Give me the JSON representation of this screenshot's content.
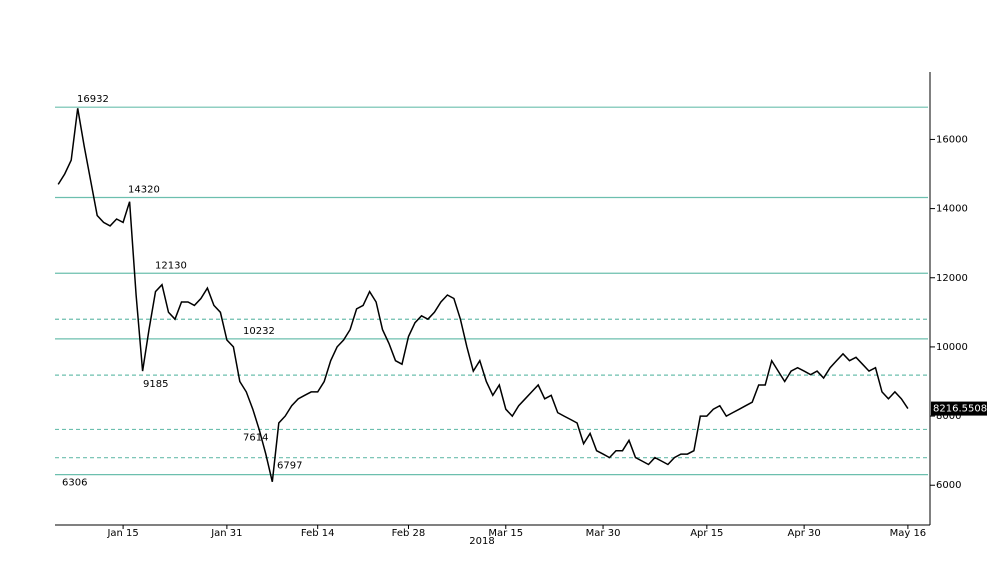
{
  "chart_data": {
    "type": "line",
    "color": "#000000",
    "level_color": "#6cbfae",
    "last_label_bg": "#000000",
    "x": [
      5,
      6,
      7,
      8,
      9,
      10,
      11,
      12,
      13,
      14,
      15,
      16,
      17,
      18,
      19,
      20,
      21,
      22,
      23,
      24,
      25,
      26,
      27,
      28,
      29,
      30,
      31,
      32,
      33,
      34,
      35,
      36,
      37,
      38,
      39,
      40,
      41,
      42,
      43,
      44,
      45,
      46,
      47,
      48,
      49,
      50,
      51,
      52,
      53,
      54,
      55,
      56,
      57,
      58,
      59,
      60,
      61,
      62,
      63,
      64,
      65,
      66,
      67,
      68,
      69,
      70,
      71,
      72,
      73,
      74,
      75,
      76,
      77,
      78,
      79,
      80,
      81,
      82,
      83,
      84,
      85,
      86,
      87,
      88,
      89,
      90,
      91,
      92,
      93,
      94,
      95,
      96,
      97,
      98,
      99,
      100,
      101,
      102,
      103,
      104,
      105,
      106,
      107,
      108,
      109,
      110,
      111,
      112,
      113,
      114,
      115,
      116,
      117,
      118,
      119,
      120,
      121,
      122,
      123,
      124,
      125,
      126,
      127,
      128,
      129,
      130,
      131,
      132,
      133,
      134,
      135,
      136
    ],
    "values": [
      14700,
      15000,
      15400,
      16900,
      15800,
      14800,
      13800,
      13600,
      13500,
      13700,
      13600,
      14200,
      11500,
      9300,
      10500,
      11600,
      11800,
      11000,
      10800,
      11300,
      11300,
      11200,
      11400,
      11700,
      11200,
      11000,
      10200,
      10000,
      9000,
      8700,
      8200,
      7600,
      6900,
      6100,
      7800,
      8000,
      8300,
      8500,
      8600,
      8700,
      8700,
      9000,
      9600,
      10000,
      10200,
      10500,
      11100,
      11200,
      11600,
      11300,
      10500,
      10100,
      9600,
      9500,
      10300,
      10700,
      10900,
      10800,
      11000,
      11300,
      11500,
      11400,
      10800,
      10000,
      9300,
      9600,
      9000,
      8600,
      8900,
      8200,
      8000,
      8300,
      8500,
      8700,
      8900,
      8500,
      8600,
      8100,
      8000,
      7900,
      7800,
      7200,
      7500,
      7000,
      6900,
      6800,
      7000,
      7000,
      7300,
      6800,
      6700,
      6600,
      6800,
      6700,
      6600,
      6800,
      6900,
      6900,
      7000,
      8000,
      8000,
      8200,
      8300,
      8000,
      8100,
      8200,
      8300,
      8400,
      8900,
      8900,
      9600,
      9300,
      9000,
      9300,
      9400,
      9300,
      9200,
      9300,
      9100,
      9400,
      9600,
      9800,
      9600,
      9700,
      9500,
      9300,
      9400,
      8700,
      8500,
      8700,
      8500,
      8216.5508
    ],
    "levels": [
      {
        "value": 16932,
        "dashed": false,
        "labeled": true
      },
      {
        "value": 14320,
        "dashed": false,
        "labeled": true
      },
      {
        "value": 12130,
        "dashed": false,
        "labeled": true
      },
      {
        "value": 10800,
        "dashed": true,
        "labeled": false
      },
      {
        "value": 10232,
        "dashed": false,
        "labeled": true
      },
      {
        "value": 9185,
        "dashed": true,
        "labeled": true
      },
      {
        "value": 7614,
        "dashed": true,
        "labeled": true
      },
      {
        "value": 6797,
        "dashed": true,
        "labeled": true
      },
      {
        "value": 6306,
        "dashed": false,
        "labeled": true
      }
    ],
    "xlabel": "2018",
    "xlim": [
      4.5,
      139.1
    ],
    "xticks": [
      {
        "value": 15,
        "label": "Jan 15"
      },
      {
        "value": 31,
        "label": "Jan 31"
      },
      {
        "value": 45,
        "label": "Feb 14"
      },
      {
        "value": 59,
        "label": "Feb 28"
      },
      {
        "value": 74,
        "label": "Mar 15"
      },
      {
        "value": 89,
        "label": "Mar 30"
      },
      {
        "value": 105,
        "label": "Apr 15"
      },
      {
        "value": 120,
        "label": "Apr 30"
      },
      {
        "value": 136,
        "label": "May 16"
      }
    ],
    "ylim": [
      4850,
      17950
    ],
    "yticks": [
      6000,
      8000,
      10000,
      12000,
      14000,
      16000
    ]
  }
}
